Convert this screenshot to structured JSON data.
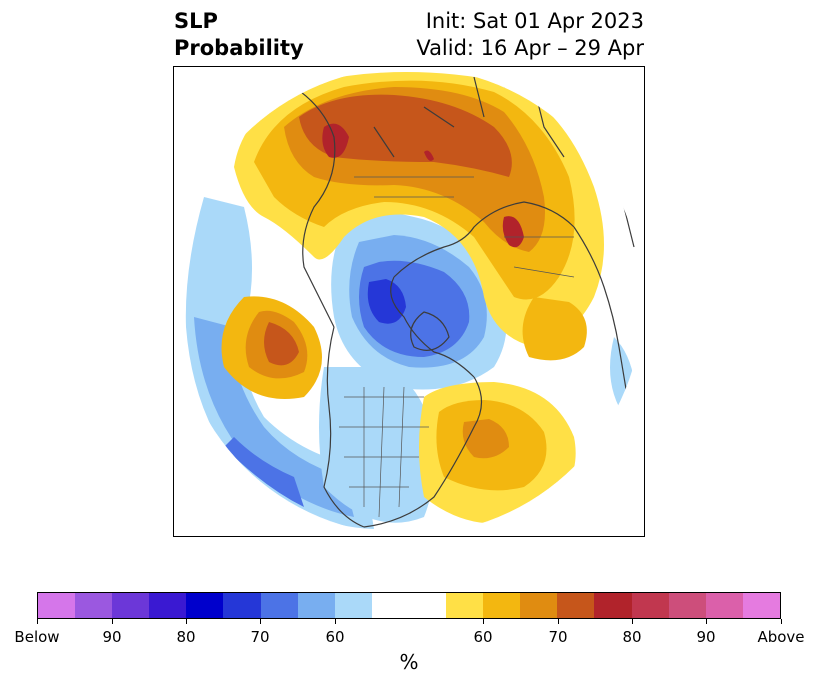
{
  "title": {
    "left_line1": "SLP",
    "left_line2": "Probability",
    "right_line1": "Init: Sat 01 Apr 2023",
    "right_line2": "Valid: 16 Apr – 29 Apr"
  },
  "colorbar": {
    "colors": [
      "#d576ea",
      "#9b58e0",
      "#6c37d8",
      "#3a19d2",
      "#0000cc",
      "#2537d7",
      "#4c73e6",
      "#78aef0",
      "#aad9f9",
      "#ffffff",
      "#ffffff",
      "#ffe046",
      "#f3b710",
      "#e08c11",
      "#c6561b",
      "#b1232b",
      "#c1374f",
      "#cd4e7b",
      "#db60aa",
      "#e57be0"
    ],
    "labels": [
      "Below",
      "90",
      "80",
      "70",
      "60",
      "60",
      "70",
      "80",
      "90",
      "Above"
    ],
    "units": "%"
  },
  "map": {
    "projection": "north-polar-stereographic",
    "fields": [
      "below-normal-slp",
      "above-normal-slp"
    ],
    "accent_below": "#4c73e6",
    "accent_above": "#c6561b"
  }
}
